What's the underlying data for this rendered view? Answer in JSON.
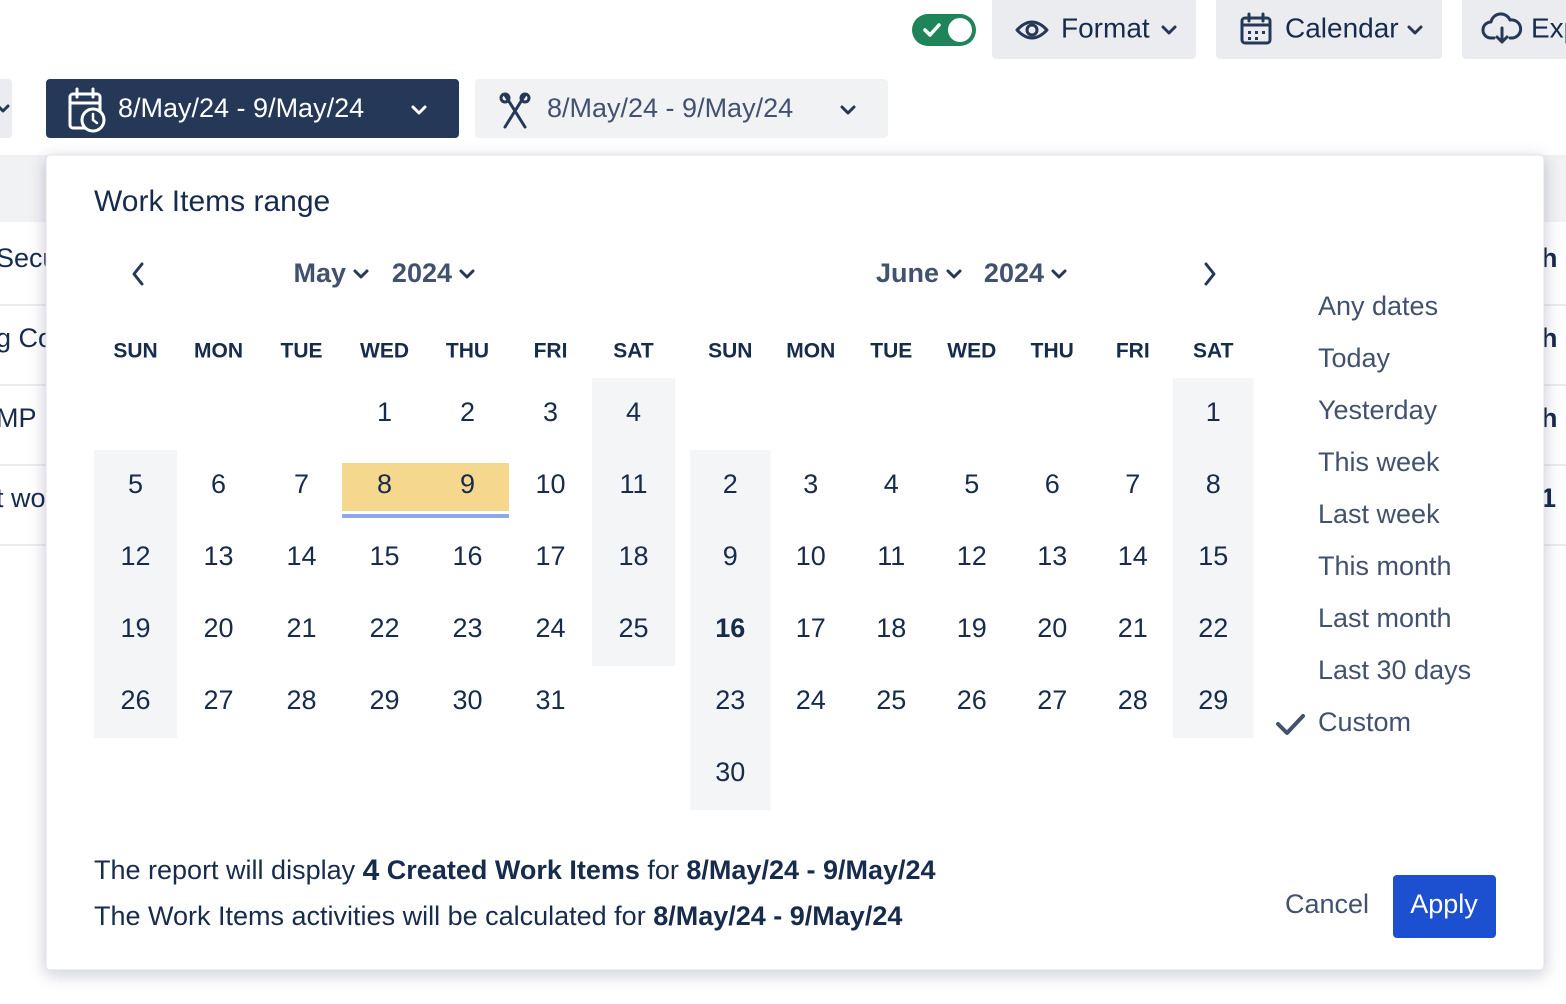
{
  "toolbar": {
    "format": "Format",
    "calendar": "Calendar",
    "export": "Exp"
  },
  "filters": {
    "created_range": "8/May/24 - 9/May/24",
    "activity_range": "8/May/24 - 9/May/24"
  },
  "background_rows": [
    {
      "left": "Secu",
      "right": "h"
    },
    {
      "left": "g Co",
      "right": "h"
    },
    {
      "left": "MP",
      "right": "h"
    },
    {
      "left": "t wo",
      "right": "1"
    }
  ],
  "picker": {
    "title": "Work Items range",
    "weekdays": [
      "SUN",
      "MON",
      "TUE",
      "WED",
      "THU",
      "FRI",
      "SAT"
    ],
    "months": [
      {
        "month": "May",
        "year": "2024",
        "weeks": [
          [
            null,
            null,
            null,
            1,
            2,
            3,
            4
          ],
          [
            5,
            6,
            7,
            8,
            9,
            10,
            11
          ],
          [
            12,
            13,
            14,
            15,
            16,
            17,
            18
          ],
          [
            19,
            20,
            21,
            22,
            23,
            24,
            25
          ],
          [
            26,
            27,
            28,
            29,
            30,
            31,
            null
          ]
        ],
        "selected": [
          8,
          9
        ]
      },
      {
        "month": "June",
        "year": "2024",
        "weeks": [
          [
            null,
            null,
            null,
            null,
            null,
            null,
            1
          ],
          [
            2,
            3,
            4,
            5,
            6,
            7,
            8
          ],
          [
            9,
            10,
            11,
            12,
            13,
            14,
            15
          ],
          [
            16,
            17,
            18,
            19,
            20,
            21,
            22
          ],
          [
            23,
            24,
            25,
            26,
            27,
            28,
            29
          ],
          [
            30,
            null,
            null,
            null,
            null,
            null,
            null
          ]
        ],
        "today": 16
      }
    ],
    "options": [
      {
        "label": "Any dates",
        "checked": false
      },
      {
        "label": "Today",
        "checked": false
      },
      {
        "label": "Yesterday",
        "checked": false
      },
      {
        "label": "This week",
        "checked": false
      },
      {
        "label": "Last week",
        "checked": false
      },
      {
        "label": "This month",
        "checked": false
      },
      {
        "label": "Last month",
        "checked": false
      },
      {
        "label": "Last 30 days",
        "checked": false
      },
      {
        "label": "Custom",
        "checked": true
      }
    ],
    "summary": {
      "line1": {
        "prefix": "The report will display ",
        "count": 4,
        "item": " Created Work Items",
        "middle": " for ",
        "range": "8/May/24 - 9/May/24"
      },
      "line2": {
        "prefix": "The Work Items activities will be calculated for ",
        "range": "8/May/24 - 9/May/24"
      }
    },
    "cancel": "Cancel",
    "apply": "Apply"
  }
}
